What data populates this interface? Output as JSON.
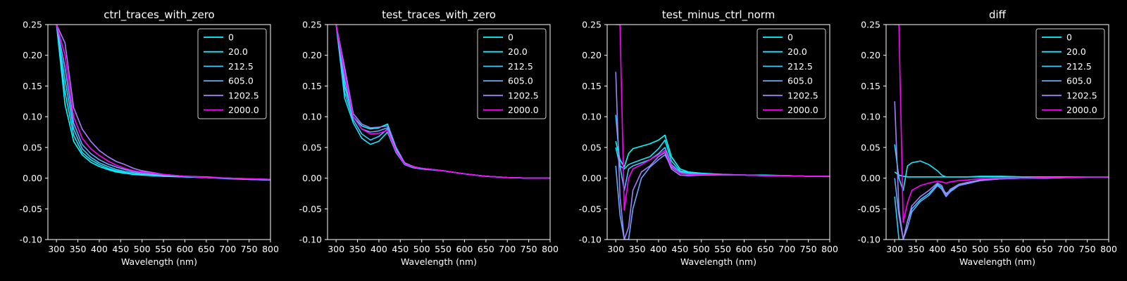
{
  "chart_data": [
    {
      "type": "line",
      "title": "ctrl_traces_with_zero",
      "xlabel": "Wavelength (nm)",
      "ylabel": "",
      "xlim": [
        280,
        800
      ],
      "ylim": [
        -0.1,
        0.25
      ],
      "xticks": [
        300,
        350,
        400,
        450,
        500,
        550,
        600,
        650,
        700,
        750,
        800
      ],
      "yticks": [
        -0.1,
        -0.05,
        0.0,
        0.05,
        0.1,
        0.15,
        0.2,
        0.25
      ],
      "legend_position": "top-right",
      "x": [
        300,
        320,
        340,
        360,
        380,
        400,
        420,
        440,
        460,
        480,
        500,
        550,
        600,
        650,
        700,
        750,
        800
      ],
      "series": [
        {
          "name": "0",
          "color": "#00ffff",
          "values": [
            0.25,
            0.12,
            0.06,
            0.038,
            0.026,
            0.019,
            0.014,
            0.01,
            0.008,
            0.006,
            0.005,
            0.003,
            0.002,
            0.001,
            0.0,
            -0.002,
            -0.003
          ]
        },
        {
          "name": "20.0",
          "color": "#1ae5ff",
          "values": [
            0.25,
            0.14,
            0.07,
            0.042,
            0.03,
            0.022,
            0.016,
            0.012,
            0.009,
            0.007,
            0.006,
            0.003,
            0.002,
            0.001,
            0.0,
            -0.001,
            -0.002
          ]
        },
        {
          "name": "212.5",
          "color": "#33ccff",
          "values": [
            0.25,
            0.16,
            0.08,
            0.048,
            0.034,
            0.025,
            0.019,
            0.014,
            0.011,
            0.009,
            0.007,
            0.004,
            0.003,
            0.001,
            -0.001,
            -0.002,
            -0.003
          ]
        },
        {
          "name": "605.0",
          "color": "#66aaff",
          "values": [
            0.25,
            0.18,
            0.09,
            0.055,
            0.04,
            0.03,
            0.023,
            0.018,
            0.014,
            0.011,
            0.009,
            0.005,
            0.003,
            0.001,
            0.0,
            -0.002,
            -0.003
          ]
        },
        {
          "name": "1202.5",
          "color": "#a37fff",
          "values": [
            0.25,
            0.22,
            0.115,
            0.08,
            0.06,
            0.045,
            0.035,
            0.027,
            0.022,
            0.016,
            0.012,
            0.006,
            0.003,
            0.002,
            0.0,
            -0.001,
            -0.003
          ]
        },
        {
          "name": "2000.0",
          "color": "#ff00ff",
          "values": [
            0.25,
            0.2,
            0.1,
            0.065,
            0.048,
            0.037,
            0.028,
            0.021,
            0.016,
            0.012,
            0.01,
            0.006,
            0.003,
            0.001,
            0.0,
            -0.001,
            -0.002
          ]
        }
      ]
    },
    {
      "type": "line",
      "title": "test_traces_with_zero",
      "xlabel": "Wavelength (nm)",
      "ylabel": "",
      "xlim": [
        280,
        800
      ],
      "ylim": [
        -0.1,
        0.25
      ],
      "xticks": [
        300,
        350,
        400,
        450,
        500,
        550,
        600,
        650,
        700,
        750,
        800
      ],
      "yticks": [
        -0.1,
        -0.05,
        0.0,
        0.05,
        0.1,
        0.15,
        0.2,
        0.25
      ],
      "legend_position": "top-right",
      "x": [
        300,
        320,
        340,
        360,
        380,
        400,
        420,
        440,
        460,
        480,
        500,
        550,
        600,
        650,
        700,
        750,
        800
      ],
      "series": [
        {
          "name": "0",
          "color": "#00ffff",
          "values": [
            0.25,
            0.15,
            0.1,
            0.085,
            0.08,
            0.082,
            0.088,
            0.05,
            0.025,
            0.018,
            0.015,
            0.012,
            0.007,
            0.003,
            0.001,
            0.0,
            0.0
          ]
        },
        {
          "name": "20.0",
          "color": "#1ae5ff",
          "values": [
            0.25,
            0.13,
            0.09,
            0.065,
            0.055,
            0.06,
            0.075,
            0.042,
            0.022,
            0.017,
            0.015,
            0.012,
            0.007,
            0.003,
            0.001,
            0.0,
            0.0
          ]
        },
        {
          "name": "212.5",
          "color": "#33ccff",
          "values": [
            0.25,
            0.14,
            0.095,
            0.072,
            0.062,
            0.068,
            0.08,
            0.045,
            0.024,
            0.018,
            0.016,
            0.012,
            0.007,
            0.003,
            0.001,
            0.0,
            0.0
          ]
        },
        {
          "name": "605.0",
          "color": "#66aaff",
          "values": [
            0.25,
            0.16,
            0.1,
            0.08,
            0.075,
            0.077,
            0.082,
            0.046,
            0.024,
            0.018,
            0.016,
            0.012,
            0.007,
            0.003,
            0.001,
            0.0,
            0.0
          ]
        },
        {
          "name": "1202.5",
          "color": "#a37fff",
          "values": [
            0.25,
            0.18,
            0.105,
            0.088,
            0.082,
            0.083,
            0.085,
            0.048,
            0.025,
            0.019,
            0.016,
            0.012,
            0.007,
            0.003,
            0.001,
            0.0,
            0.0
          ]
        },
        {
          "name": "2000.0",
          "color": "#ff00ff",
          "values": [
            0.25,
            0.17,
            0.1,
            0.08,
            0.072,
            0.073,
            0.078,
            0.044,
            0.023,
            0.018,
            0.016,
            0.012,
            0.007,
            0.003,
            0.001,
            0.0,
            0.0
          ]
        }
      ]
    },
    {
      "type": "line",
      "title": "test_minus_ctrl_norm",
      "xlabel": "Wavelength (nm)",
      "ylabel": "",
      "xlim": [
        280,
        800
      ],
      "ylim": [
        -0.1,
        0.25
      ],
      "xticks": [
        300,
        350,
        400,
        450,
        500,
        550,
        600,
        650,
        700,
        750,
        800
      ],
      "yticks": [
        -0.1,
        -0.05,
        0.0,
        0.05,
        0.1,
        0.15,
        0.2,
        0.25
      ],
      "legend_position": "top-right",
      "x": [
        300,
        310,
        320,
        330,
        340,
        360,
        380,
        400,
        415,
        430,
        450,
        470,
        500,
        550,
        600,
        650,
        700,
        750,
        800
      ],
      "series": [
        {
          "name": "0",
          "color": "#00ffff",
          "values": [
            0.06,
            0.03,
            0.018,
            0.04,
            0.048,
            0.052,
            0.056,
            0.062,
            0.07,
            0.035,
            0.015,
            0.01,
            0.008,
            0.006,
            0.005,
            0.005,
            0.004,
            0.003,
            0.003
          ]
        },
        {
          "name": "20.0",
          "color": "#1ae5ff",
          "values": [
            0.05,
            0.02,
            0.015,
            0.022,
            0.025,
            0.03,
            0.035,
            0.048,
            0.062,
            0.028,
            0.012,
            0.009,
            0.007,
            0.006,
            0.005,
            0.004,
            0.004,
            0.003,
            0.003
          ]
        },
        {
          "name": "212.5",
          "color": "#33ccff",
          "values": [
            0.103,
            0.02,
            -0.02,
            0.015,
            0.02,
            0.025,
            0.03,
            0.04,
            0.05,
            0.022,
            0.01,
            0.008,
            0.006,
            0.005,
            0.005,
            0.004,
            0.004,
            0.003,
            0.003
          ]
        },
        {
          "name": "605.0",
          "color": "#66aaff",
          "values": [
            0.02,
            -0.06,
            -0.1,
            -0.1,
            -0.05,
            0.0,
            0.018,
            0.03,
            0.038,
            0.018,
            0.008,
            0.006,
            0.006,
            0.005,
            0.005,
            0.004,
            0.004,
            0.003,
            0.003
          ]
        },
        {
          "name": "1202.5",
          "color": "#a37fff",
          "values": [
            0.173,
            -0.03,
            -0.1,
            -0.08,
            -0.02,
            0.01,
            0.02,
            0.035,
            0.042,
            0.015,
            0.005,
            0.004,
            0.005,
            0.005,
            0.005,
            0.004,
            0.004,
            0.003,
            0.003
          ]
        },
        {
          "name": "2000.0",
          "color": "#ff00ff",
          "values": [
            0.25,
            0.25,
            -0.052,
            0.0,
            0.015,
            0.022,
            0.03,
            0.038,
            0.045,
            0.02,
            0.008,
            0.006,
            0.006,
            0.005,
            0.005,
            0.004,
            0.004,
            0.003,
            0.003
          ]
        }
      ]
    },
    {
      "type": "line",
      "title": "diff",
      "xlabel": "Wavelength (nm)",
      "ylabel": "",
      "xlim": [
        280,
        800
      ],
      "ylim": [
        -0.1,
        0.25
      ],
      "xticks": [
        300,
        350,
        400,
        450,
        500,
        550,
        600,
        650,
        700,
        750,
        800
      ],
      "yticks": [
        -0.1,
        -0.05,
        0.0,
        0.05,
        0.1,
        0.15,
        0.2,
        0.25
      ],
      "legend_position": "top-right",
      "x": [
        300,
        310,
        320,
        330,
        340,
        360,
        380,
        400,
        410,
        420,
        430,
        450,
        470,
        500,
        550,
        600,
        650,
        700,
        750,
        800
      ],
      "series": [
        {
          "name": "0",
          "color": "#00ffff",
          "values": [
            0.01,
            0.005,
            0.003,
            0.002,
            0.002,
            0.002,
            0.002,
            0.002,
            0.002,
            0.002,
            0.002,
            0.002,
            0.002,
            0.002,
            0.002,
            0.002,
            0.002,
            0.002,
            0.002,
            0.002
          ]
        },
        {
          "name": "20.0",
          "color": "#1ae5ff",
          "values": [
            0.055,
            0.0,
            -0.02,
            0.02,
            0.025,
            0.028,
            0.022,
            0.012,
            0.005,
            0.002,
            0.002,
            0.002,
            0.002,
            0.003,
            0.003,
            0.002,
            0.002,
            0.002,
            0.002,
            0.002
          ]
        },
        {
          "name": "212.5",
          "color": "#33ccff",
          "values": [
            -0.03,
            -0.1,
            -0.1,
            -0.07,
            -0.05,
            -0.035,
            -0.025,
            -0.01,
            -0.015,
            -0.025,
            -0.02,
            -0.01,
            -0.008,
            -0.003,
            -0.001,
            0.0,
            0.0,
            0.001,
            0.002,
            0.002
          ]
        },
        {
          "name": "605.0",
          "color": "#66aaff",
          "values": [
            0.0,
            -0.06,
            -0.1,
            -0.08,
            -0.055,
            -0.038,
            -0.028,
            -0.012,
            -0.018,
            -0.03,
            -0.022,
            -0.012,
            -0.009,
            -0.004,
            -0.001,
            0.0,
            0.0,
            0.001,
            0.002,
            0.002
          ]
        },
        {
          "name": "1202.5",
          "color": "#a37fff",
          "values": [
            0.125,
            -0.05,
            -0.1,
            -0.07,
            -0.045,
            -0.03,
            -0.02,
            -0.008,
            -0.012,
            -0.028,
            -0.018,
            -0.01,
            -0.007,
            -0.003,
            -0.001,
            0.0,
            0.0,
            0.001,
            0.002,
            0.002
          ]
        },
        {
          "name": "2000.0",
          "color": "#ff00ff",
          "values": [
            0.25,
            0.25,
            -0.072,
            -0.04,
            -0.02,
            -0.012,
            -0.008,
            -0.005,
            -0.006,
            -0.008,
            -0.006,
            -0.004,
            -0.003,
            -0.001,
            0.0,
            0.0,
            0.001,
            0.001,
            0.002,
            0.002
          ]
        }
      ]
    }
  ]
}
